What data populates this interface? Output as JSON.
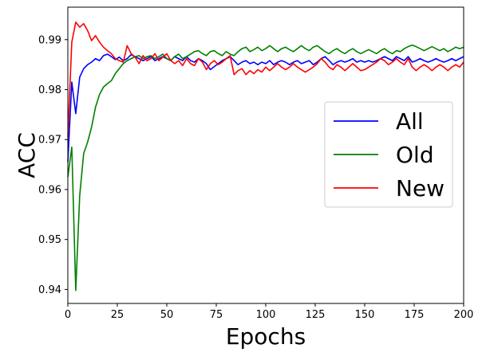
{
  "chart_data": {
    "type": "line",
    "xlabel": "Epochs",
    "ylabel": "ACC",
    "xlim": [
      0,
      200
    ],
    "ylim": [
      0.9372,
      0.9965
    ],
    "xticks": [
      0,
      25,
      50,
      75,
      100,
      125,
      150,
      175,
      200
    ],
    "yticks": [
      0.94,
      0.95,
      0.96,
      0.97,
      0.98,
      0.99
    ],
    "ytick_labels": [
      "0.94",
      "0.95",
      "0.96",
      "0.97",
      "0.98",
      "0.99"
    ],
    "grid": false,
    "legend_position": "center-right",
    "x": [
      0,
      2,
      4,
      6,
      8,
      10,
      12,
      14,
      16,
      18,
      20,
      22,
      24,
      26,
      28,
      30,
      32,
      34,
      36,
      38,
      40,
      42,
      44,
      46,
      48,
      50,
      52,
      54,
      56,
      58,
      60,
      62,
      64,
      66,
      68,
      70,
      72,
      74,
      76,
      78,
      80,
      82,
      84,
      86,
      88,
      90,
      92,
      94,
      96,
      98,
      100,
      102,
      104,
      106,
      108,
      110,
      112,
      114,
      116,
      118,
      120,
      122,
      124,
      126,
      128,
      130,
      132,
      134,
      136,
      138,
      140,
      142,
      144,
      146,
      148,
      150,
      152,
      154,
      156,
      158,
      160,
      162,
      164,
      166,
      168,
      170,
      172,
      174,
      176,
      178,
      180,
      182,
      184,
      186,
      188,
      190,
      192,
      194,
      196,
      198,
      200
    ],
    "series": [
      {
        "name": "All",
        "color": "#0000ff",
        "values": [
          0.9655,
          0.9815,
          0.9752,
          0.9825,
          0.9842,
          0.985,
          0.9855,
          0.9862,
          0.9858,
          0.9868,
          0.9871,
          0.9866,
          0.986,
          0.9865,
          0.9858,
          0.9862,
          0.987,
          0.9866,
          0.9862,
          0.9858,
          0.9862,
          0.9866,
          0.9858,
          0.9862,
          0.9866,
          0.9862,
          0.9858,
          0.9866,
          0.9862,
          0.9858,
          0.9866,
          0.9858,
          0.9855,
          0.9862,
          0.9858,
          0.9852,
          0.984,
          0.9846,
          0.9852,
          0.9858,
          0.9862,
          0.9866,
          0.9858,
          0.985,
          0.9855,
          0.9858,
          0.9852,
          0.9855,
          0.985,
          0.9855,
          0.9852,
          0.9858,
          0.985,
          0.9855,
          0.9858,
          0.9855,
          0.985,
          0.9855,
          0.9858,
          0.9852,
          0.9855,
          0.9858,
          0.985,
          0.9855,
          0.9862,
          0.9866,
          0.9858,
          0.985,
          0.9855,
          0.9858,
          0.9855,
          0.9858,
          0.9862,
          0.9855,
          0.9858,
          0.9855,
          0.9858,
          0.9855,
          0.9858,
          0.9862,
          0.9866,
          0.9862,
          0.9858,
          0.9866,
          0.9862,
          0.9858,
          0.9866,
          0.9855,
          0.9858,
          0.9862,
          0.9858,
          0.9855,
          0.9858,
          0.9862,
          0.9858,
          0.9855,
          0.9858,
          0.9862,
          0.9858,
          0.9862,
          0.9866
        ]
      },
      {
        "name": "Old",
        "color": "#008000",
        "values": [
          0.9625,
          0.9685,
          0.9398,
          0.9588,
          0.9672,
          0.9695,
          0.9725,
          0.9765,
          0.979,
          0.9805,
          0.9812,
          0.9818,
          0.9832,
          0.9842,
          0.9852,
          0.9858,
          0.9862,
          0.9866,
          0.9868,
          0.9862,
          0.9866,
          0.9868,
          0.9862,
          0.9866,
          0.9871,
          0.9862,
          0.9858,
          0.9866,
          0.9871,
          0.9862,
          0.9866,
          0.9871,
          0.9876,
          0.9878,
          0.9872,
          0.9868,
          0.9876,
          0.9878,
          0.9872,
          0.9868,
          0.9876,
          0.9871,
          0.9868,
          0.9876,
          0.9882,
          0.9885,
          0.9876,
          0.988,
          0.9885,
          0.9878,
          0.9882,
          0.9888,
          0.9882,
          0.9876,
          0.9882,
          0.9885,
          0.988,
          0.9876,
          0.9882,
          0.9888,
          0.9882,
          0.9878,
          0.9885,
          0.9888,
          0.9882,
          0.9876,
          0.9872,
          0.9878,
          0.9882,
          0.9876,
          0.9872,
          0.9878,
          0.9882,
          0.9876,
          0.9872,
          0.9876,
          0.988,
          0.9876,
          0.9872,
          0.9878,
          0.9882,
          0.9876,
          0.9872,
          0.9878,
          0.9876,
          0.9882,
          0.9886,
          0.9889,
          0.9886,
          0.9882,
          0.9878,
          0.9882,
          0.9886,
          0.9882,
          0.9878,
          0.9882,
          0.9876,
          0.988,
          0.9885,
          0.9882,
          0.9885
        ]
      },
      {
        "name": "New",
        "color": "#ff0000",
        "values": [
          0.9705,
          0.9895,
          0.9935,
          0.9925,
          0.9932,
          0.9918,
          0.9898,
          0.9908,
          0.9895,
          0.9885,
          0.9878,
          0.9872,
          0.9862,
          0.9858,
          0.9855,
          0.9888,
          0.9872,
          0.9865,
          0.9852,
          0.9868,
          0.9858,
          0.9862,
          0.9872,
          0.9858,
          0.9865,
          0.9872,
          0.9858,
          0.9852,
          0.9858,
          0.9848,
          0.9862,
          0.9852,
          0.9848,
          0.9862,
          0.9855,
          0.984,
          0.9852,
          0.9858,
          0.985,
          0.9855,
          0.9862,
          0.9868,
          0.983,
          0.9838,
          0.9842,
          0.983,
          0.9838,
          0.9832,
          0.984,
          0.9835,
          0.9845,
          0.9838,
          0.9845,
          0.9852,
          0.9845,
          0.984,
          0.9845,
          0.9852,
          0.9845,
          0.984,
          0.9835,
          0.984,
          0.9845,
          0.9852,
          0.9862,
          0.9855,
          0.9845,
          0.984,
          0.985,
          0.9845,
          0.9838,
          0.9845,
          0.9852,
          0.9845,
          0.9838,
          0.984,
          0.9845,
          0.985,
          0.9855,
          0.9862,
          0.9858,
          0.985,
          0.9855,
          0.9862,
          0.9855,
          0.985,
          0.9862,
          0.9845,
          0.9838,
          0.9845,
          0.985,
          0.9845,
          0.9838,
          0.9845,
          0.985,
          0.9845,
          0.9838,
          0.9845,
          0.985,
          0.9845,
          0.9855
        ]
      }
    ]
  }
}
